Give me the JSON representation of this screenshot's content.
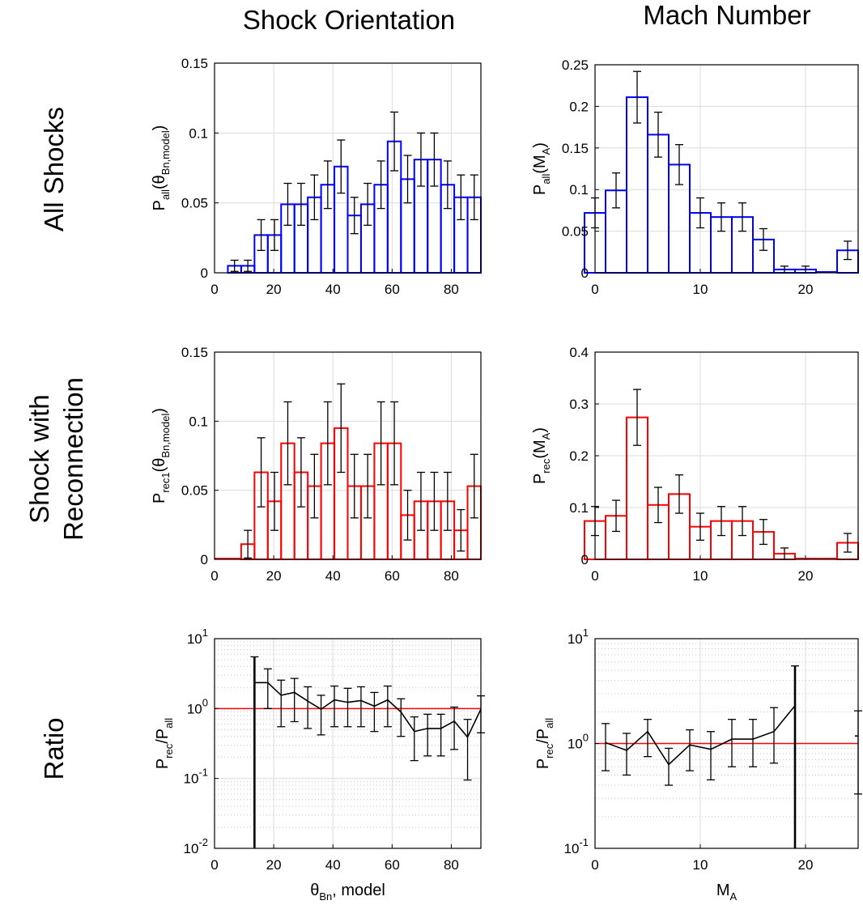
{
  "column_titles": [
    "Shock Orientation",
    "Mach Number"
  ],
  "row_titles": {
    "all": [
      "All Shocks"
    ],
    "rec": [
      "Shock with",
      "Reconnection"
    ],
    "ratio": [
      "Ratio"
    ]
  },
  "colors": {
    "all": "#0000ff",
    "rec": "#ff0000",
    "ratio_line": "#000000",
    "ref_line": "#ff0000",
    "grid": "#dcdcdc",
    "errorbar": "#000000"
  },
  "chart_data": [
    {
      "id": "theta-all",
      "type": "bar",
      "scale": "linear",
      "ylabel": {
        "main": "P",
        "sub": "all",
        "arg": "(θ",
        "argsub": "Bn,model",
        "close": ")"
      },
      "xlim": [
        0,
        90
      ],
      "ylim": [
        0,
        0.15
      ],
      "xticks": [
        0,
        20,
        40,
        60,
        80
      ],
      "yticks": [
        0,
        0.05,
        0.1,
        0.15
      ],
      "ytick_labels": [
        "0",
        "0.05",
        "0.1",
        "0.15"
      ],
      "bin_width": 4.5,
      "x": [
        9,
        13.5,
        18,
        22.5,
        27,
        31.5,
        36,
        40.5,
        45,
        49.5,
        54,
        58.5,
        63,
        67.5,
        72,
        76.5,
        81,
        85.5,
        90
      ],
      "values": [
        0.005,
        0.005,
        0.027,
        0.027,
        0.049,
        0.049,
        0.054,
        0.063,
        0.076,
        0.041,
        0.049,
        0.063,
        0.094,
        0.067,
        0.081,
        0.081,
        0.063,
        0.054,
        0.054
      ],
      "errors": [
        0.004,
        0.004,
        0.011,
        0.011,
        0.015,
        0.015,
        0.016,
        0.017,
        0.019,
        0.013,
        0.015,
        0.017,
        0.021,
        0.017,
        0.019,
        0.019,
        0.017,
        0.016,
        0.016
      ]
    },
    {
      "id": "mach-all",
      "type": "bar",
      "scale": "linear",
      "ylabel": {
        "main": "P",
        "sub": "all",
        "arg": "(M",
        "argsub": "A",
        "close": ")"
      },
      "xlim": [
        0,
        25
      ],
      "ylim": [
        0,
        0.25
      ],
      "xticks": [
        0,
        10,
        20
      ],
      "yticks": [
        0,
        0.05,
        0.1,
        0.15,
        0.2,
        0.25
      ],
      "ytick_labels": [
        "0",
        "0.05",
        "0.1",
        "0.15",
        "0.2",
        "0.25"
      ],
      "bin_width": 2,
      "x": [
        1,
        3,
        5,
        7,
        9,
        11,
        13,
        15,
        17,
        19,
        21,
        23,
        25
      ],
      "values": [
        0.072,
        0.099,
        0.211,
        0.166,
        0.13,
        0.072,
        0.067,
        0.067,
        0.04,
        0.004,
        0.004,
        0,
        0.027
      ],
      "errors": [
        0.018,
        0.021,
        0.031,
        0.027,
        0.024,
        0.018,
        0.017,
        0.017,
        0.013,
        0.004,
        0.004,
        0,
        0.011
      ]
    },
    {
      "id": "theta-rec",
      "type": "bar",
      "scale": "linear",
      "ylabel": {
        "main": "P",
        "sub": "rec1",
        "arg": "(θ",
        "argsub": "Bn,model",
        "close": ")"
      },
      "xlim": [
        0,
        90
      ],
      "ylim": [
        0,
        0.15
      ],
      "xticks": [
        0,
        20,
        40,
        60,
        80
      ],
      "yticks": [
        0,
        0.05,
        0.1,
        0.15
      ],
      "ytick_labels": [
        "0",
        "0.05",
        "0.1",
        "0.15"
      ],
      "bin_width": 4.5,
      "x": [
        4.5,
        9,
        13.5,
        18,
        22.5,
        27,
        31.5,
        36,
        40.5,
        45,
        49.5,
        54,
        58.5,
        63,
        67.5,
        72,
        76.5,
        81,
        85.5,
        90
      ],
      "values": [
        0,
        0,
        0.011,
        0.063,
        0.042,
        0.084,
        0.063,
        0.053,
        0.084,
        0.095,
        0.053,
        0.053,
        0.084,
        0.084,
        0.032,
        0.042,
        0.042,
        0.042,
        0.021,
        0.053
      ],
      "errors": [
        0,
        0,
        0.01,
        0.025,
        0.021,
        0.03,
        0.025,
        0.023,
        0.03,
        0.032,
        0.023,
        0.023,
        0.03,
        0.03,
        0.018,
        0.021,
        0.021,
        0.021,
        0.015,
        0.023
      ]
    },
    {
      "id": "mach-rec",
      "type": "bar",
      "scale": "linear",
      "ylabel": {
        "main": "P",
        "sub": "rec",
        "arg": "(M",
        "argsub": "A",
        "close": ")"
      },
      "xlim": [
        0,
        25
      ],
      "ylim": [
        0,
        0.4
      ],
      "xticks": [
        0,
        10,
        20
      ],
      "yticks": [
        0,
        0.1,
        0.2,
        0.3,
        0.4
      ],
      "ytick_labels": [
        "0",
        "0.1",
        "0.2",
        "0.3",
        "0.4"
      ],
      "bin_width": 2,
      "x": [
        1,
        3,
        5,
        7,
        9,
        11,
        13,
        15,
        17,
        19,
        21,
        23,
        25
      ],
      "values": [
        0.074,
        0.084,
        0.274,
        0.105,
        0.126,
        0.063,
        0.074,
        0.074,
        0.053,
        0.011,
        0,
        0,
        0.032
      ],
      "errors": [
        0.028,
        0.03,
        0.054,
        0.034,
        0.037,
        0.026,
        0.028,
        0.028,
        0.024,
        0.011,
        0,
        0,
        0.018
      ]
    },
    {
      "id": "theta-ratio",
      "type": "line",
      "scale": "log",
      "ylabel": {
        "main": "P",
        "sub": "rec",
        "slash": "/P",
        "sub2": "all"
      },
      "xlabel": {
        "main": "θ",
        "sub": "Bn",
        "rest": ", model"
      },
      "xlim": [
        0,
        90
      ],
      "ylim_exp": [
        -2,
        1
      ],
      "xticks": [
        0,
        20,
        40,
        60,
        80
      ],
      "yticks_exp": [
        -2,
        -1,
        0,
        1
      ],
      "ytick_base": "10",
      "ref_value": 1,
      "x": [
        13.5,
        18,
        22.5,
        27,
        31.5,
        36,
        40.5,
        45,
        49.5,
        54,
        58.5,
        63,
        67.5,
        72,
        76.5,
        81,
        85.5,
        90
      ],
      "values": [
        2.35,
        2.35,
        1.55,
        1.7,
        1.28,
        0.98,
        1.33,
        1.23,
        1.3,
        1.08,
        1.33,
        0.89,
        0.47,
        0.52,
        0.52,
        0.66,
        0.39,
        0.98
      ],
      "err_low": [
        0.005,
        1.0,
        0.55,
        0.65,
        0.52,
        0.42,
        0.55,
        0.55,
        0.55,
        0.47,
        0.55,
        0.4,
        0.18,
        0.21,
        0.21,
        0.26,
        0.095,
        0.45
      ],
      "err_high": [
        5.5,
        3.7,
        2.55,
        2.7,
        2.05,
        1.55,
        2.1,
        1.95,
        2.05,
        1.7,
        2.1,
        1.38,
        0.76,
        0.83,
        0.83,
        1.05,
        0.7,
        1.52
      ]
    },
    {
      "id": "mach-ratio",
      "type": "line",
      "scale": "log",
      "ylabel": {
        "main": "P",
        "sub": "rec",
        "slash": "/P",
        "sub2": "all"
      },
      "xlabel": {
        "main": "M",
        "sub": "A",
        "rest": ""
      },
      "xlim": [
        0,
        25
      ],
      "ylim_exp": [
        -1,
        1
      ],
      "xticks": [
        0,
        10,
        20
      ],
      "yticks_exp": [
        -1,
        0,
        1
      ],
      "ytick_base": "10",
      "ref_value": 1,
      "x": [
        1,
        3,
        5,
        7,
        9,
        11,
        13,
        15,
        17,
        19,
        25
      ],
      "values": [
        1.02,
        0.86,
        1.3,
        0.63,
        0.97,
        0.88,
        1.1,
        1.1,
        1.3,
        2.3,
        1.18
      ],
      "err_low": [
        0.55,
        0.5,
        0.75,
        0.4,
        0.55,
        0.45,
        0.6,
        0.6,
        0.65,
        0.05,
        0.33
      ],
      "err_high": [
        1.55,
        1.25,
        1.7,
        0.9,
        1.35,
        1.3,
        1.7,
        1.7,
        2.2,
        5.5,
        2.05
      ],
      "line_break_after_index": 9
    }
  ]
}
